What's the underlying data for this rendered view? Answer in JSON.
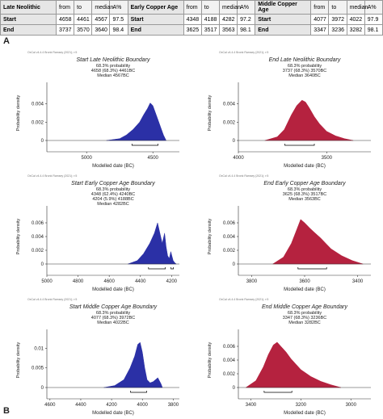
{
  "table": {
    "columns": [
      "from",
      "to",
      "median",
      "A%"
    ],
    "groups": [
      {
        "name": "Late Neolithic",
        "rows": [
          {
            "label": "Start",
            "values": [
              4658,
              4461,
              4567,
              97.5
            ]
          },
          {
            "label": "End",
            "values": [
              3737,
              3570,
              3640,
              98.4
            ]
          }
        ]
      },
      {
        "name": "Early Copper Age",
        "rows": [
          {
            "label": "Start",
            "values": [
              4348,
              4188,
              4282,
              97.2
            ]
          },
          {
            "label": "End",
            "values": [
              3625,
              3517,
              3563,
              98.1
            ]
          }
        ]
      },
      {
        "name": "Middle Copper Age",
        "rows": [
          {
            "label": "Start",
            "values": [
              4077,
              3972,
              4022,
              97.9
            ]
          },
          {
            "label": "End",
            "values": [
              3347,
              3236,
              3282,
              98.1
            ]
          }
        ]
      }
    ]
  },
  "figure_labels": [
    "A",
    "B"
  ],
  "chart_data": [
    {
      "type": "area",
      "header": "OxCal v4.4.4 Bronk Ramsey (2021); r:5",
      "title": "Start Late Neolithic Boundary",
      "lines": [
        "68.3% probability",
        "4658 (68.3%) 4461BC",
        "Median 4567BC"
      ],
      "xlabel": "Modelled date (BC)",
      "ylabel": "Probability density",
      "color": "#2b30a6",
      "xlim": [
        5300,
        4300
      ],
      "xticks": [
        5000,
        4500
      ],
      "ylim": [
        0,
        0.006
      ],
      "yticks": [
        0,
        0.002,
        0.004
      ],
      "x": [
        4850,
        4750,
        4700,
        4650,
        4600,
        4570,
        4540,
        4520,
        4500,
        4480,
        4460,
        4440,
        4420,
        4400
      ],
      "values": [
        0,
        0.0002,
        0.0006,
        0.0012,
        0.002,
        0.0028,
        0.0035,
        0.0041,
        0.0038,
        0.003,
        0.0022,
        0.0014,
        0.0006,
        0
      ],
      "hpd": [
        [
          4658,
          4461
        ]
      ]
    },
    {
      "type": "area",
      "header": "OxCal v4.4.4 Bronk Ramsey (2021); r:5",
      "title": "End Late Neolithic Boundary",
      "lines": [
        "68.3% probability",
        "3737 (68.3%) 3570BC",
        "Median 3640BC"
      ],
      "xlabel": "Modelled date (BC)",
      "ylabel": "Probability density",
      "color": "#b5223f",
      "xlim": [
        4000,
        3250
      ],
      "xticks": [
        4000,
        3500
      ],
      "ylim": [
        0,
        0.006
      ],
      "yticks": [
        0,
        0.002,
        0.004
      ],
      "x": [
        3850,
        3780,
        3740,
        3700,
        3670,
        3640,
        3620,
        3600,
        3570,
        3540,
        3500,
        3450,
        3400,
        3350
      ],
      "values": [
        0,
        0.0004,
        0.0012,
        0.0028,
        0.0038,
        0.0044,
        0.0042,
        0.0036,
        0.0026,
        0.0018,
        0.001,
        0.0005,
        0.0002,
        0
      ],
      "hpd": [
        [
          3737,
          3570
        ]
      ]
    },
    {
      "type": "area",
      "header": "OxCal v4.4.4 Bronk Ramsey (2021); r:5",
      "title": "Start Early Copper Age Boundary",
      "lines": [
        "68.3% probability",
        "4348 (62.4%) 4240BC",
        "4204 (5.9%) 4188BC",
        "Median 4282BC"
      ],
      "xlabel": "Modelled date (BC)",
      "ylabel": "Probability density",
      "color": "#2b30a6",
      "xlim": [
        5000,
        4150
      ],
      "xticks": [
        5000,
        4800,
        4600,
        4400,
        4200
      ],
      "ylim": [
        0,
        0.008
      ],
      "yticks": [
        0,
        0.002,
        0.004,
        0.006
      ],
      "x": [
        4480,
        4420,
        4380,
        4340,
        4310,
        4290,
        4275,
        4260,
        4245,
        4235,
        4225,
        4215,
        4205,
        4198,
        4190,
        4180,
        4170
      ],
      "values": [
        0,
        0.0005,
        0.0015,
        0.003,
        0.0045,
        0.006,
        0.0045,
        0.003,
        0.0045,
        0.0025,
        0.0012,
        0.0008,
        0.0018,
        0.0012,
        0.0005,
        0.0002,
        0
      ],
      "hpd": [
        [
          4348,
          4240
        ],
        [
          4204,
          4188
        ]
      ]
    },
    {
      "type": "area",
      "header": "OxCal v4.4.4 Bronk Ramsey (2021); r:5",
      "title": "End Early Copper Age Boundary",
      "lines": [
        "68.3% probability",
        "3625 (68.3%) 3517BC",
        "Median 3563BC"
      ],
      "xlabel": "Modelled date (BC)",
      "ylabel": "Probability density",
      "color": "#b5223f",
      "xlim": [
        3850,
        3350
      ],
      "xticks": [
        3800,
        3600,
        3400
      ],
      "ylim": [
        0,
        0.008
      ],
      "yticks": [
        0,
        0.002,
        0.004,
        0.006
      ],
      "x": [
        3720,
        3680,
        3650,
        3630,
        3615,
        3600,
        3580,
        3560,
        3540,
        3520,
        3500,
        3460,
        3420,
        3380
      ],
      "values": [
        0,
        0.001,
        0.003,
        0.005,
        0.0065,
        0.006,
        0.0052,
        0.0045,
        0.0038,
        0.003,
        0.0022,
        0.0012,
        0.0005,
        0
      ],
      "hpd": [
        [
          3625,
          3517
        ]
      ]
    },
    {
      "type": "area",
      "header": "OxCal v4.4.4 Bronk Ramsey (2021); r:5",
      "title": "Start Middle Copper Age Boundary",
      "lines": [
        "68.3% probability",
        "4077 (68.3%) 3972BC",
        "Median 4022BC"
      ],
      "xlabel": "Modelled date (BC)",
      "ylabel": "Probability density",
      "color": "#2b30a6",
      "xlim": [
        4620,
        3760
      ],
      "xticks": [
        4600,
        4400,
        4200,
        4000,
        3800
      ],
      "ylim": [
        0,
        0.014
      ],
      "yticks": [
        0,
        0.005,
        0.01
      ],
      "x": [
        4250,
        4180,
        4120,
        4080,
        4050,
        4030,
        4015,
        4000,
        3985,
        3970,
        3950,
        3930,
        3900,
        3880,
        3870
      ],
      "values": [
        0,
        0.0005,
        0.002,
        0.005,
        0.008,
        0.011,
        0.0115,
        0.009,
        0.005,
        0.002,
        0.0012,
        0.0015,
        0.0025,
        0.001,
        0
      ],
      "hpd": [
        [
          4077,
          3972
        ]
      ]
    },
    {
      "type": "area",
      "header": "OxCal v4.4.4 Bronk Ramsey (2021); r:5",
      "title": "End Middle Copper Age Boundary",
      "lines": [
        "68.3% probability",
        "3347 (68.3%) 3236BC",
        "Median 3282BC"
      ],
      "xlabel": "Modelled date (BC)",
      "ylabel": "Probability density",
      "color": "#b5223f",
      "xlim": [
        3450,
        2920
      ],
      "xticks": [
        3400,
        3200,
        3000
      ],
      "ylim": [
        0,
        0.008
      ],
      "yticks": [
        0,
        0.002,
        0.004,
        0.006
      ],
      "x": [
        3420,
        3380,
        3350,
        3330,
        3310,
        3295,
        3280,
        3260,
        3240,
        3220,
        3200,
        3160,
        3120,
        3080,
        3040
      ],
      "values": [
        0,
        0.001,
        0.003,
        0.0048,
        0.0062,
        0.0066,
        0.006,
        0.0052,
        0.0042,
        0.0034,
        0.0026,
        0.0016,
        0.0009,
        0.0004,
        0
      ],
      "hpd": [
        [
          3347,
          3236
        ]
      ]
    }
  ]
}
